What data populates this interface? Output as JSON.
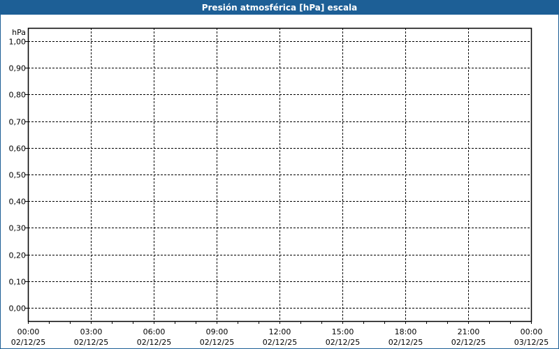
{
  "window": {
    "title": "Presión atmosférica [hPa] escala",
    "title_bar_color": "#1d5f96"
  },
  "chart_data": {
    "type": "line",
    "title": "Presión atmosférica [hPa] escala",
    "ylabel": "hPa",
    "ylim": [
      0,
      1
    ],
    "yticks": [
      "1,00",
      "0,90",
      "0,80",
      "0,70",
      "0,60",
      "0,50",
      "0,40",
      "0,30",
      "0,20",
      "0,10",
      "0,00"
    ],
    "xticks": [
      {
        "time": "00:00",
        "date": "02/12/25"
      },
      {
        "time": "03:00",
        "date": "02/12/25"
      },
      {
        "time": "06:00",
        "date": "02/12/25"
      },
      {
        "time": "09:00",
        "date": "02/12/25"
      },
      {
        "time": "12:00",
        "date": "02/12/25"
      },
      {
        "time": "15:00",
        "date": "02/12/25"
      },
      {
        "time": "18:00",
        "date": "02/12/25"
      },
      {
        "time": "21:00",
        "date": "02/12/25"
      },
      {
        "time": "00:00",
        "date": "03/12/25"
      }
    ],
    "xlim": [
      "02/12/25 00:00",
      "03/12/25 00:00"
    ],
    "minor_tick_interval_hours": 1,
    "grid": true,
    "series": []
  }
}
